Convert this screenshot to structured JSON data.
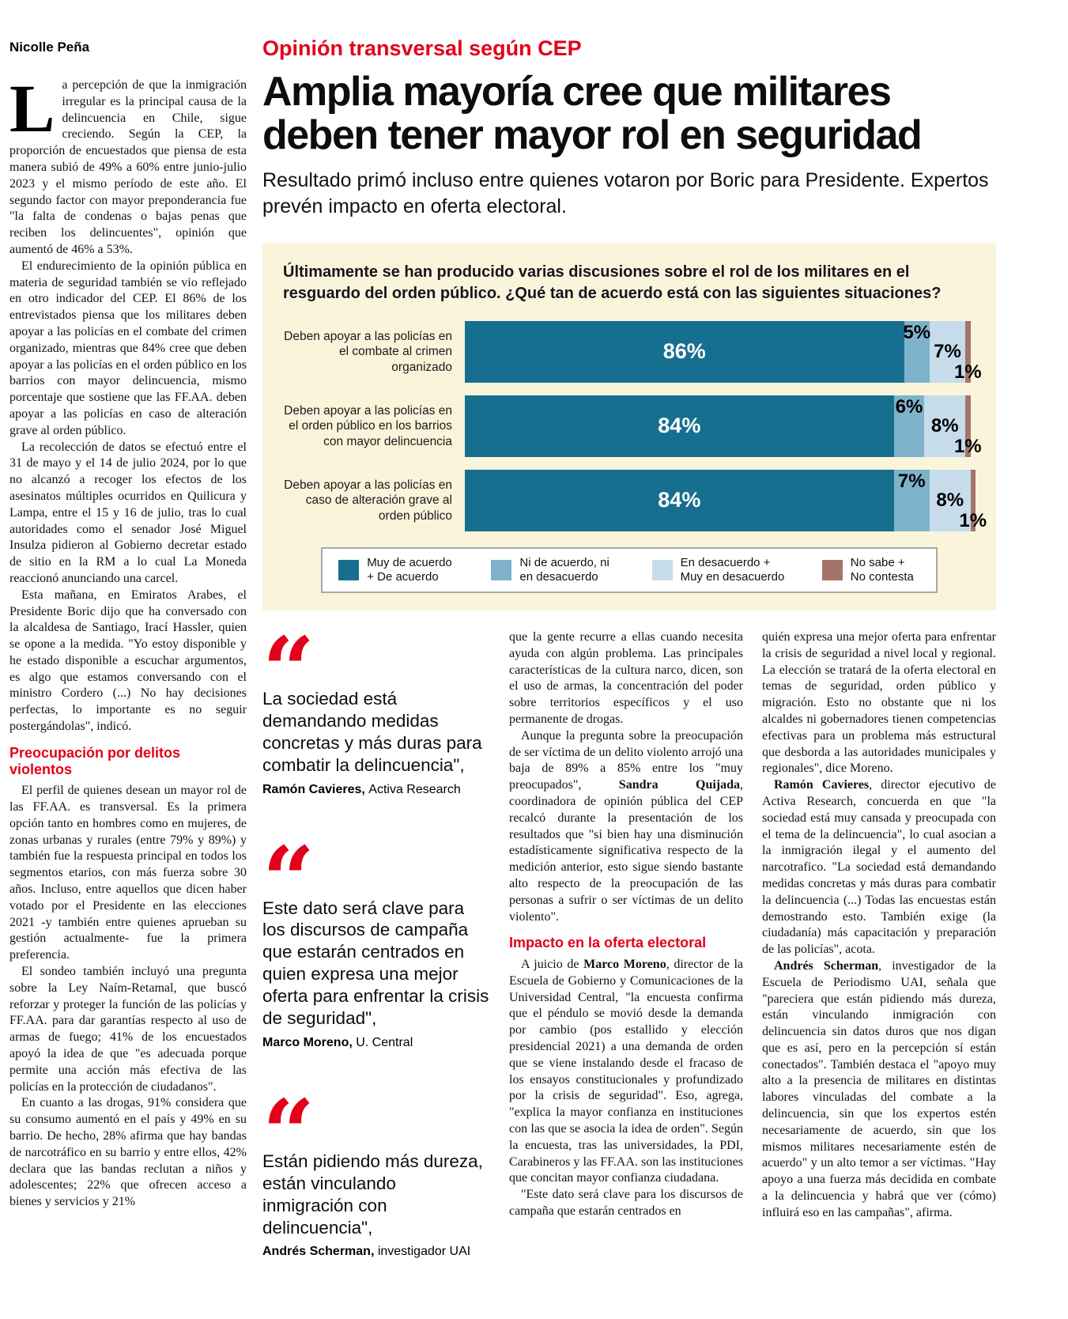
{
  "byline": "Nicolle Peña",
  "kicker": "Opinión transversal según CEP",
  "headline": "Amplia mayoría cree que militares deben tener mayor rol en seguridad",
  "deck": "Resultado primó incluso entre quienes votaron por Boric para Presidente. Expertos prevén impacto en oferta electoral.",
  "colors": {
    "accent_red": "#e2001a",
    "chart_background": "#faf4da",
    "bar_dark_teal": "#176f90",
    "bar_medium_blue": "#7eb2cb",
    "bar_light_blue": "#c6dcea",
    "bar_brown": "#a3756a"
  },
  "left_column": {
    "dropcap": "L",
    "lead": "a percepción de que la inmigración irregular es la principal causa de la delincuencia en Chile, sigue creciendo. Según la CEP, la proporción de encuestados que piensa de esta manera subió de 49% a 60% entre junio-julio 2023 y el mismo período de este año. El segundo factor con mayor preponderancia fue \"la falta de condenas o bajas penas que reciben los delincuentes\", opinión que aumentó de 46% a 53%.",
    "paragraphs": [
      "El endurecimiento de la opinión pública en materia de seguridad también se vio reflejado en otro indicador del CEP. El 86% de los entrevistados piensa que los militares deben apoyar a las policías en el combate del crimen organizado, mientras que 84% cree que deben apoyar a las policías en el orden público en los barrios con mayor delincuencia, mismo porcentaje que sostiene que las FF.AA. deben apoyar a las policías en caso de alteración grave al orden público.",
      "La recolección de datos se efectuó entre el 31 de mayo y el 14 de julio 2024, por lo que no alcanzó a recoger los efectos de los asesinatos múltiples ocurridos en Quilicura y Lampa, entre el 15 y 16 de julio, tras lo cual autoridades como el senador José Miguel Insulza pidieron al Gobierno decretar estado de sitio en la RM a lo cual La Moneda reaccionó anunciando una carcel.",
      "Esta mañana, en Emiratos Arabes, el Presidente Boric dijo que ha conversado con la alcaldesa de Santiago, Irací Hassler, quien se opone a la medida. \"Yo estoy disponible y he estado disponible a escuchar argumentos, es algo que estamos conversando con el ministro Cordero (...) No hay decisiones perfectas, lo importante es no seguir postergándolas\", indicó."
    ],
    "subhead": "Preocupación por delitos violentos",
    "paragraphs2": [
      "El perfil de quienes desean un mayor rol de las FF.AA. es transversal. Es la primera opción tanto en hombres como en mujeres, de zonas urbanas y rurales (entre 79% y 89%) y también fue la respuesta principal en todos los segmentos etarios, con más fuerza sobre 30 años. Incluso, entre aquellos que dicen haber votado por el Presidente en las elecciones 2021 -y también entre quienes aprueban su gestión actualmente- fue la primera preferencia.",
      "El sondeo también incluyó una pregunta sobre la Ley Naím-Retamal, que buscó reforzar y proteger la función de las policías y FF.AA. para dar garantías respecto al uso de armas de fuego; 41% de los encuestados apoyó la idea de que \"es adecuada porque permite una acción más efectiva de las policías en la protección de ciudadanos\".",
      "En cuanto a las drogas, 91% considera que su consumo aumentó en el país y 49% en su barrio. De hecho, 28% afirma que hay bandas de narcotráfico en su barrio y entre ellos, 42% declara que las bandas reclutan a niños y adolescentes; 22% que ofrecen acceso a bienes y servicios y 21%"
    ]
  },
  "chart_data": {
    "type": "bar",
    "orientation": "horizontal",
    "title": "Últimamente se han producido varias discusiones sobre el rol de los militares en el resguardo del orden público. ¿Qué tan de acuerdo está con las siguientes situaciones?",
    "categories": [
      "Deben apoyar a las policías en el combate al crimen organizado",
      "Deben apoyar a las policías en el orden público en los barrios con mayor delincuencia",
      "Deben apoyar a las policías en caso de alteración grave al orden público"
    ],
    "series": [
      {
        "name": "Muy de acuerdo + De acuerdo",
        "color": "#176f90",
        "values": [
          86,
          84,
          84
        ]
      },
      {
        "name": "Ni de acuerdo, ni en desacuerdo",
        "color": "#7eb2cb",
        "values": [
          5,
          6,
          7
        ]
      },
      {
        "name": "En desacuerdo + Muy en desacuerdo",
        "color": "#c6dcea",
        "values": [
          7,
          8,
          8
        ]
      },
      {
        "name": "No sabe + No contesta",
        "color": "#a3756a",
        "values": [
          1,
          1,
          1
        ]
      }
    ],
    "value_suffix": "%",
    "xlim": [
      0,
      100
    ],
    "background": "#faf4da",
    "legend_position": "bottom",
    "grid": false
  },
  "quotes": [
    {
      "text": "La sociedad está demandando medidas concretas y más duras para combatir la delincuencia\",",
      "author": "Ramón Cavieres,",
      "affiliation": "Activa Research"
    },
    {
      "text": "Este dato será clave para los discursos de campaña que estarán centrados en quien expresa una mejor oferta para enfrentar la crisis de seguridad\",",
      "author": "Marco Moreno,",
      "affiliation": "U. Central"
    },
    {
      "text": "Están pidiendo más dureza, están vinculando inmigración con delincuencia\",",
      "author": "Andrés Scherman,",
      "affiliation": "investigador UAI"
    }
  ],
  "col2": {
    "paragraphs1": [
      "que la gente recurre a ellas cuando necesita ayuda con algún problema. Las principales características de la cultura narco, dicen, son el uso de armas, la concentración del poder sobre territorios específicos y el uso permanente de drogas.",
      "Aunque la pregunta sobre la preocupación de ser víctima de un delito violento arrojó una baja de 89% a 85% entre los \"muy preocupados\", **Sandra Quijada**, coordinadora de opinión pública del CEP recalcó durante la presentación de los resultados que \"si bien hay una disminución estadísticamente significativa respecto de la medición anterior, esto sigue siendo bastante alto respecto de la preocupación de las personas a sufrir o ser víctimas de un delito violento\"."
    ],
    "subhead": "Impacto en la oferta electoral",
    "paragraphs2": [
      "A juicio de **Marco Moreno**, director de la Escuela de Gobierno y Comunicaciones de la Universidad Central, \"la encuesta confirma que el péndulo se movió desde la demanda por cambio (pos estallido y elección presidencial 2021) a una demanda de orden que se viene instalando desde el fracaso de los ensayos constitucionales y profundizado por la crisis de seguridad\". Eso, agrega, \"explica la mayor confianza en instituciones con las que se asocia la idea de orden\". Según la encuesta, tras las universidades, la PDI, Carabineros y las FF.AA. son las instituciones que concitan mayor confianza ciudadana.",
      "\"Este dato será clave para los discursos de campaña que estarán centrados en"
    ]
  },
  "col3": {
    "paragraphs": [
      "quién expresa una mejor oferta para enfrentar la crisis de seguridad a nivel local y regional. La elección se tratará de la oferta electoral en temas de seguridad, orden público y migración. Esto no obstante que ni los alcaldes ni gobernadores tienen competencias efectivas para un problema más estructural que desborda a las autoridades municipales y regionales\", dice Moreno.",
      "**Ramón Cavieres**, director ejecutivo de Activa Research, concuerda en que \"la sociedad está muy cansada y preocupada con el tema de la delincuencia\", lo cual asocian a la inmigración ilegal y el aumento del narcotrafico. \"La sociedad está demandando medidas concretas y más duras para combatir la delincuencia (...) Todas las encuestas están demostrando esto. También exige (la ciudadanía) más capacitación y preparación de las policías\", acota.",
      "**Andrés Scherman**, investigador de la Escuela de Periodismo UAI, señala que \"pareciera que están pidiendo más dureza, están vinculando inmigración con delincuencia sin datos duros que nos digan que es así, pero en la percepción sí están conectados\". También destaca el \"apoyo muy alto a la presencia de militares en distintas labores vinculadas del combate a la delincuencia, sin que los expertos estén necesariamente de acuerdo, sin que los mismos militares necesariamente estén de acuerdo\" y un alto temor a ser víctimas. \"Hay apoyo a una fuerza más decidida en combate a la delincuencia y habrá que ver (cómo) influirá eso en las campañas\", afirma."
    ]
  }
}
